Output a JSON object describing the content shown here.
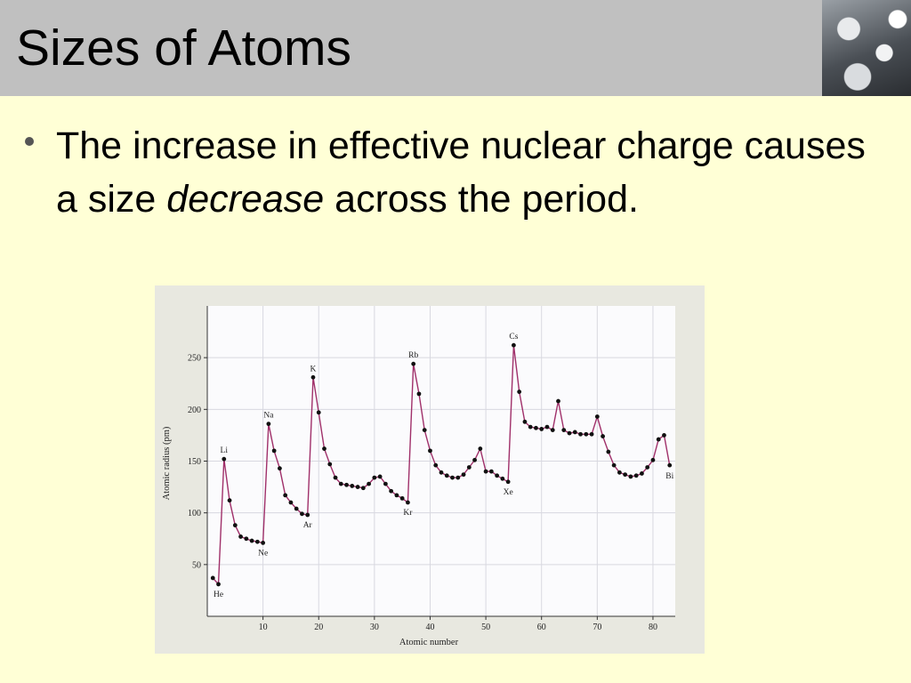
{
  "slide": {
    "title": "Sizes of Atoms",
    "bullet_part1": "The increase in effective nuclear charge causes a size",
    "bullet_emph": "decrease",
    "bullet_part2": "across the period."
  },
  "chart_data": {
    "type": "line",
    "xlabel": "Atomic number",
    "ylabel": "Atomic radius (pm)",
    "xlim": [
      0,
      84
    ],
    "ylim": [
      0,
      300
    ],
    "xticks": [
      10,
      20,
      30,
      40,
      50,
      60,
      70,
      80
    ],
    "yticks": [
      50,
      100,
      150,
      200,
      250
    ],
    "grid": true,
    "series": [
      {
        "x": [
          1,
          2,
          3,
          4,
          5,
          6,
          7,
          8,
          9,
          10,
          11,
          12,
          13,
          14,
          15,
          16,
          17,
          18,
          19,
          20,
          21,
          22,
          23,
          24,
          25,
          26,
          27,
          28,
          29,
          30,
          31,
          32,
          33,
          34,
          35,
          36,
          37,
          38,
          39,
          40,
          41,
          42,
          43,
          44,
          45,
          46,
          47,
          48,
          49,
          50,
          51,
          52,
          53,
          54,
          55,
          56,
          57,
          58,
          59,
          60,
          61,
          62,
          63,
          64,
          65,
          66,
          67,
          68,
          69,
          70,
          71,
          72,
          73,
          74,
          75,
          76,
          77,
          78,
          79,
          80,
          81,
          82,
          83
        ],
        "y": [
          37,
          31,
          152,
          112,
          88,
          77,
          75,
          73,
          72,
          71,
          186,
          160,
          143,
          117,
          110,
          104,
          99,
          98,
          231,
          197,
          162,
          147,
          134,
          128,
          127,
          126,
          125,
          124,
          128,
          134,
          135,
          128,
          121,
          117,
          114,
          110,
          244,
          215,
          180,
          160,
          146,
          139,
          136,
          134,
          134,
          137,
          144,
          151,
          162,
          140,
          140,
          136,
          133,
          130,
          262,
          217,
          188,
          183,
          182,
          181,
          183,
          180,
          208,
          180,
          177,
          178,
          176,
          176,
          176,
          193,
          174,
          159,
          146,
          139,
          137,
          135,
          136,
          138,
          144,
          151,
          171,
          175,
          146
        ]
      }
    ],
    "annotations": [
      {
        "text": "He",
        "x": 2
      },
      {
        "text": "Li",
        "x": 3
      },
      {
        "text": "Ne",
        "x": 10
      },
      {
        "text": "Na",
        "x": 11
      },
      {
        "text": "Ar",
        "x": 18
      },
      {
        "text": "K",
        "x": 19
      },
      {
        "text": "Kr",
        "x": 36
      },
      {
        "text": "Rb",
        "x": 37
      },
      {
        "text": "Xe",
        "x": 54
      },
      {
        "text": "Cs",
        "x": 55
      },
      {
        "text": "Bi",
        "x": 83
      }
    ],
    "colors": {
      "line": "#a0306a",
      "point": "#111111",
      "grid": "#d8d8e0",
      "plot_bg": "#fbfbfd"
    }
  }
}
